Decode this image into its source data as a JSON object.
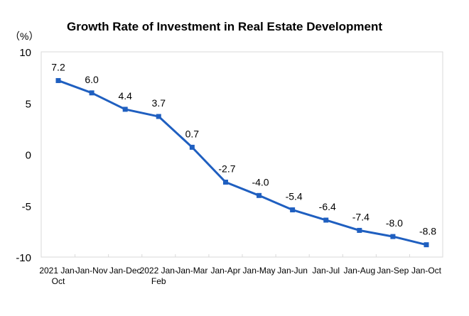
{
  "chart_data": {
    "type": "line",
    "title": "Growth Rate of Investment in Real Estate Development",
    "ylabel": "（%）",
    "xlabel": "",
    "ylim": [
      -10,
      10
    ],
    "yticks": [
      10,
      5,
      0,
      -5,
      -10
    ],
    "grid": false,
    "categories": [
      [
        "2021 Jan-",
        "Oct"
      ],
      [
        "Jan-Nov"
      ],
      [
        "Jan-Dec"
      ],
      [
        "2022 Jan-",
        "Feb"
      ],
      [
        "Jan-Mar"
      ],
      [
        "Jan-Apr"
      ],
      [
        "Jan-May"
      ],
      [
        "Jan-Jun"
      ],
      [
        "Jan-Jul"
      ],
      [
        "Jan-Aug"
      ],
      [
        "Jan-Sep"
      ],
      [
        "Jan-Oct"
      ]
    ],
    "series": [
      {
        "name": "Growth Rate",
        "color": "#1f5fc0",
        "values": [
          7.2,
          6.0,
          4.4,
          3.7,
          0.7,
          -2.7,
          -4.0,
          -5.4,
          -6.4,
          -7.4,
          -8.0,
          -8.8
        ],
        "labels": [
          "7.2",
          "6.0",
          "4.4",
          "3.7",
          "0.7",
          "-2.7",
          "-4.0",
          "-5.4",
          "-6.4",
          "-7.4",
          "-8.0",
          "-8.8"
        ]
      }
    ]
  }
}
